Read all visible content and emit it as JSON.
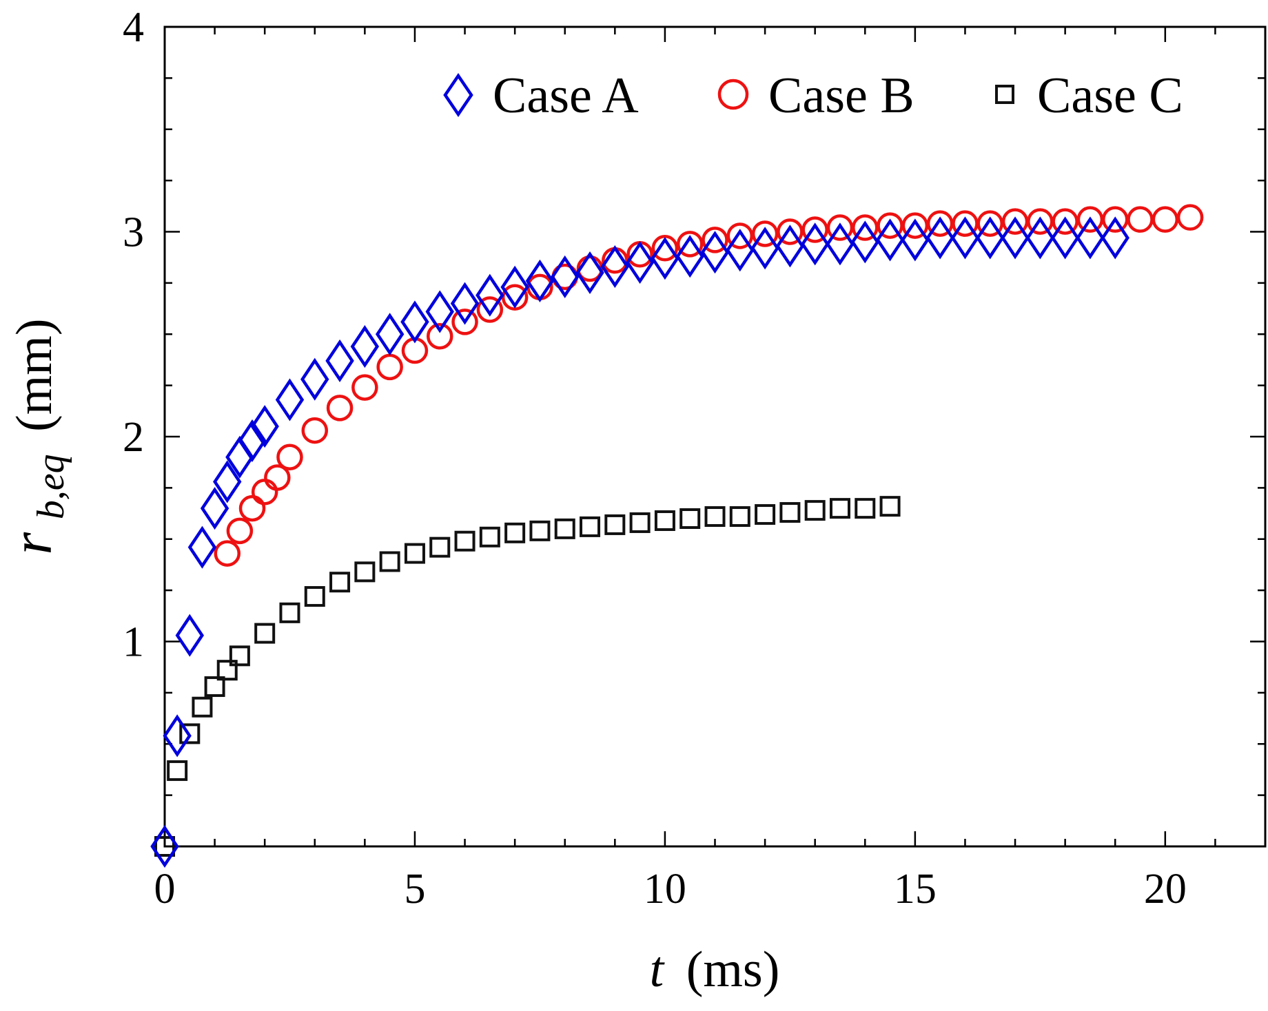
{
  "chart_data": {
    "type": "scatter",
    "title": "",
    "xlabel": {
      "var": "t",
      "unit": "(ms)"
    },
    "ylabel": {
      "var": "r",
      "sub": "b,eq",
      "unit": "(mm)"
    },
    "xlim": [
      0,
      22
    ],
    "ylim": [
      0,
      4
    ],
    "x_ticks": [
      0,
      5,
      10,
      15,
      20
    ],
    "y_ticks": [
      1,
      2,
      3,
      4
    ],
    "x_tick_labels": [
      "0",
      "5",
      "10",
      "15",
      "20"
    ],
    "y_tick_labels": [
      "1",
      "2",
      "3",
      "4"
    ],
    "grid": false,
    "legend_position": "top-right",
    "series": [
      {
        "name": "Case A",
        "marker": "diamond",
        "color": "#0000dd",
        "x": [
          0,
          0.25,
          0.5,
          0.75,
          1.0,
          1.25,
          1.5,
          1.75,
          2.0,
          2.5,
          3.0,
          3.5,
          4.0,
          4.5,
          5.0,
          5.5,
          6.0,
          6.5,
          7.0,
          7.5,
          8.0,
          8.5,
          9.0,
          9.5,
          10.0,
          10.5,
          11.0,
          11.5,
          12.0,
          12.5,
          13.0,
          13.5,
          14.0,
          14.5,
          15.0,
          15.5,
          16.0,
          16.5,
          17.0,
          17.5,
          18.0,
          18.5,
          19.0
        ],
        "y": [
          0.0,
          0.54,
          1.03,
          1.46,
          1.65,
          1.78,
          1.9,
          1.98,
          2.05,
          2.18,
          2.28,
          2.37,
          2.44,
          2.5,
          2.56,
          2.61,
          2.65,
          2.69,
          2.73,
          2.76,
          2.78,
          2.8,
          2.83,
          2.85,
          2.87,
          2.88,
          2.9,
          2.91,
          2.92,
          2.93,
          2.94,
          2.94,
          2.95,
          2.96,
          2.96,
          2.97,
          2.97,
          2.97,
          2.97,
          2.97,
          2.97,
          2.97,
          2.97
        ]
      },
      {
        "name": "Case B",
        "marker": "circle",
        "color": "#ee1111",
        "x": [
          1.25,
          1.5,
          1.75,
          2.0,
          2.25,
          2.5,
          3.0,
          3.5,
          4.0,
          4.5,
          5.0,
          5.5,
          6.0,
          6.5,
          7.0,
          7.5,
          8.0,
          8.5,
          9.0,
          9.5,
          10.0,
          10.5,
          11.0,
          11.5,
          12.0,
          12.5,
          13.0,
          13.5,
          14.0,
          14.5,
          15.0,
          15.5,
          16.0,
          16.5,
          17.0,
          17.5,
          18.0,
          18.5,
          19.0,
          19.5,
          20.0,
          20.5
        ],
        "y": [
          1.43,
          1.54,
          1.65,
          1.73,
          1.8,
          1.9,
          2.03,
          2.14,
          2.24,
          2.34,
          2.42,
          2.49,
          2.56,
          2.62,
          2.68,
          2.73,
          2.78,
          2.82,
          2.86,
          2.89,
          2.92,
          2.94,
          2.96,
          2.98,
          2.99,
          3.0,
          3.01,
          3.02,
          3.02,
          3.03,
          3.03,
          3.04,
          3.04,
          3.04,
          3.05,
          3.05,
          3.05,
          3.06,
          3.06,
          3.06,
          3.06,
          3.07
        ]
      },
      {
        "name": "Case C",
        "marker": "square",
        "color": "#111111",
        "x": [
          0,
          0.25,
          0.5,
          0.75,
          1.0,
          1.25,
          1.5,
          2.0,
          2.5,
          3.0,
          3.5,
          4.0,
          4.5,
          5.0,
          5.5,
          6.0,
          6.5,
          7.0,
          7.5,
          8.0,
          8.5,
          9.0,
          9.5,
          10.0,
          10.5,
          11.0,
          11.5,
          12.0,
          12.5,
          13.0,
          13.5,
          14.0,
          14.5
        ],
        "y": [
          0.0,
          0.37,
          0.55,
          0.68,
          0.78,
          0.86,
          0.93,
          1.04,
          1.14,
          1.22,
          1.29,
          1.34,
          1.39,
          1.43,
          1.46,
          1.49,
          1.51,
          1.53,
          1.54,
          1.55,
          1.56,
          1.57,
          1.58,
          1.59,
          1.6,
          1.61,
          1.61,
          1.62,
          1.63,
          1.64,
          1.65,
          1.65,
          1.66
        ]
      }
    ]
  }
}
